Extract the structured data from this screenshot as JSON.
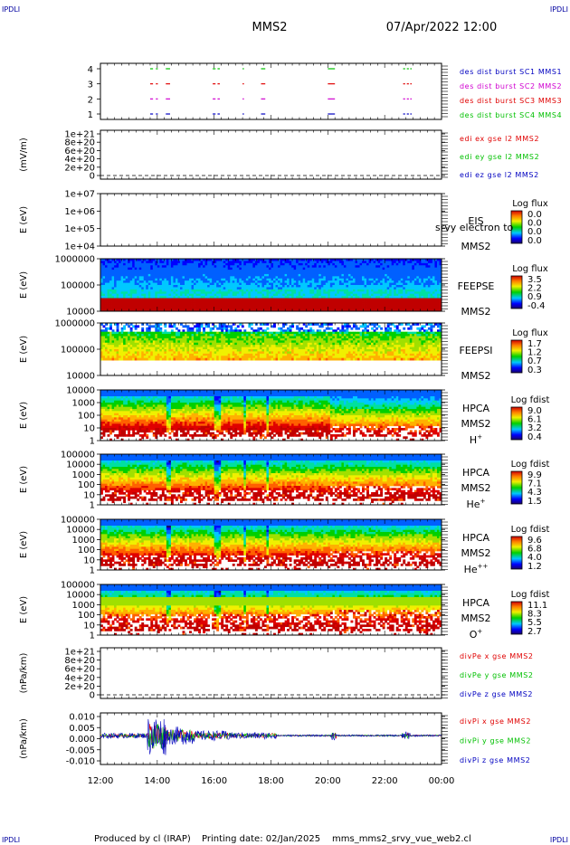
{
  "header": {
    "corner_left_top": "IPDLI",
    "corner_right_top": "IPDLI",
    "corner_left_bottom": "IPDLI",
    "corner_right_bottom": "IPDLI",
    "title": "MMS2",
    "datetime": "07/Apr/2022 12:00"
  },
  "footer": {
    "produced_by": "Produced by cl (IRAP)",
    "printing_date": "Printing date: 02/Jan/2025",
    "filename": "mms_mms2_srvy_vue_web2.cl"
  },
  "colors": {
    "red": "#e00000",
    "green": "#00c000",
    "blue": "#0000c0",
    "magenta": "#d000d0"
  },
  "chart_data": {
    "type": "multi-panel",
    "x_ticks": [
      "12:00",
      "14:00",
      "16:00",
      "18:00",
      "20:00",
      "22:00",
      "00:00"
    ],
    "panels": [
      {
        "id": "burst",
        "type": "timeline",
        "yticks": [
          "4",
          "3",
          "2",
          "1"
        ],
        "legend": [
          {
            "text": "des dist burst SC1 MMS1",
            "color": "#0000c0"
          },
          {
            "text": "des dist burst SC2 MMS2",
            "color": "#d000d0"
          },
          {
            "text": "des dist burst SC3 MMS3",
            "color": "#e00000"
          },
          {
            "text": "des dist burst SC4 MMS4",
            "color": "#00c000"
          }
        ],
        "intervals": [
          [
            13.75,
            13.85
          ],
          [
            13.95,
            14.02
          ],
          [
            14.3,
            14.45
          ],
          [
            15.95,
            16.05
          ],
          [
            16.12,
            16.2
          ],
          [
            17.0,
            17.05
          ],
          [
            17.65,
            17.8
          ],
          [
            20.0,
            20.25
          ],
          [
            22.65,
            22.72
          ],
          [
            22.78,
            22.85
          ],
          [
            22.9,
            22.95
          ]
        ]
      },
      {
        "id": "edi",
        "type": "line",
        "ylabel": "(mV/m)",
        "yticks": [
          "1e+21",
          "8e+20",
          "6e+20",
          "4e+20",
          "2e+20",
          "0"
        ],
        "legend": [
          {
            "text": "edi ex gse l2 MMS2",
            "color": "#e00000"
          },
          {
            "text": "edi ey gse l2 MMS2",
            "color": "#00c000"
          },
          {
            "text": "edi ez gse l2 MMS2",
            "color": "#0000c0"
          }
        ]
      },
      {
        "id": "eis",
        "type": "spectrogram",
        "ylabel": "E (eV)",
        "yticks": [
          "1e+07",
          "1e+06",
          "1e+05",
          "1e+04"
        ],
        "right_label": "EIS",
        "overlay_label": "srvy electron to",
        "sc_label": "MMS2",
        "cb_title": "Log flux",
        "cb_ticks": [
          "0.0",
          "0.0",
          "0.0",
          "0.0"
        ]
      },
      {
        "id": "feepse",
        "type": "spectrogram",
        "ylabel": "E (eV)",
        "yticks": [
          "1000000",
          "100000",
          "10000"
        ],
        "right_label": "FEEPSE",
        "sc_label": "MMS2",
        "cb_title": "Log flux",
        "cb_ticks": [
          "3.5",
          "2.2",
          "0.9",
          "-0.4"
        ]
      },
      {
        "id": "feepsi",
        "type": "spectrogram",
        "ylabel": "E (eV)",
        "yticks": [
          "1000000",
          "100000",
          "10000"
        ],
        "right_label": "FEEPSI",
        "sc_label": "MMS2",
        "cb_title": "Log flux",
        "cb_ticks": [
          "1.7",
          "1.2",
          "0.7",
          "0.3"
        ]
      },
      {
        "id": "hpca_h",
        "type": "spectrogram",
        "ylabel": "E (eV)",
        "yticks": [
          "10000",
          "1000",
          "100",
          "10",
          "1"
        ],
        "right_label": "HPCA",
        "sc_label": "MMS2",
        "species_base": "H",
        "species_sup": "+",
        "cb_title": "Log fdist",
        "cb_ticks": [
          "9.0",
          "6.1",
          "3.2",
          "0.4"
        ]
      },
      {
        "id": "hpca_he",
        "type": "spectrogram",
        "ylabel": "E (eV)",
        "yticks": [
          "100000",
          "10000",
          "1000",
          "100",
          "10",
          "1"
        ],
        "right_label": "HPCA",
        "sc_label": "MMS2",
        "species_base": "He",
        "species_sup": "+",
        "cb_title": "Log fdist",
        "cb_ticks": [
          "9.9",
          "7.1",
          "4.3",
          "1.5"
        ]
      },
      {
        "id": "hpca_hepp",
        "type": "spectrogram",
        "ylabel": "E (eV)",
        "yticks": [
          "100000",
          "10000",
          "1000",
          "100",
          "10",
          "1"
        ],
        "right_label": "HPCA",
        "sc_label": "MMS2",
        "species_base": "He",
        "species_sup": "++",
        "cb_title": "Log fdist",
        "cb_ticks": [
          "9.6",
          "6.8",
          "4.0",
          "1.2"
        ]
      },
      {
        "id": "hpca_o",
        "type": "spectrogram",
        "ylabel": "E (eV)",
        "yticks": [
          "100000",
          "10000",
          "1000",
          "100",
          "10",
          "1"
        ],
        "right_label": "HPCA",
        "sc_label": "MMS2",
        "species_base": "O",
        "species_sup": "+",
        "cb_title": "Log fdist",
        "cb_ticks": [
          "11.1",
          "8.3",
          "5.5",
          "2.7"
        ]
      },
      {
        "id": "divpe",
        "type": "line",
        "ylabel": "(nPa/km)",
        "yticks": [
          "1e+21",
          "8e+20",
          "6e+20",
          "4e+20",
          "2e+20",
          "0"
        ],
        "legend": [
          {
            "text": "divPe x gse MMS2",
            "color": "#e00000"
          },
          {
            "text": "divPe y gse MMS2",
            "color": "#00c000"
          },
          {
            "text": "divPe z gse MMS2",
            "color": "#0000c0"
          }
        ]
      },
      {
        "id": "divpi",
        "type": "line",
        "ylabel": "(nPa/km)",
        "yticks": [
          "0.010",
          "0.005",
          "0.000",
          "-0.005",
          "-0.010"
        ],
        "ylim": [
          -0.014,
          0.011
        ],
        "legend": [
          {
            "text": "divPi x gse MMS2",
            "color": "#e00000"
          },
          {
            "text": "divPi y gse MMS2",
            "color": "#00c000"
          },
          {
            "text": "divPi z gse MMS2",
            "color": "#0000c0"
          }
        ]
      }
    ]
  }
}
